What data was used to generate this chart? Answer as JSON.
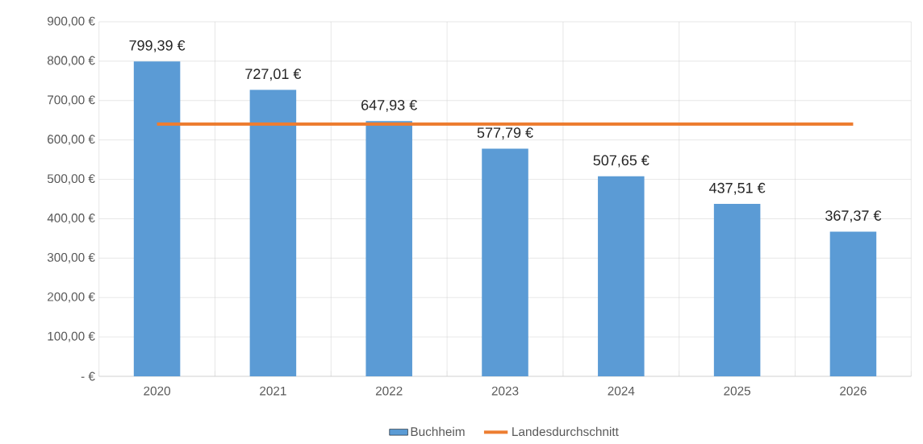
{
  "chart_data": {
    "type": "bar",
    "categories": [
      "2020",
      "2021",
      "2022",
      "2023",
      "2024",
      "2025",
      "2026"
    ],
    "series": [
      {
        "name": "Buchheim",
        "color": "#5b9bd5",
        "values": [
          799.39,
          727.01,
          647.93,
          577.79,
          507.65,
          437.51,
          367.37
        ],
        "value_labels": [
          "799,39 €",
          "727,01 €",
          "647,93 €",
          "577,79 €",
          "507,65 €",
          "437,51 €",
          "367,37 €"
        ]
      },
      {
        "name": "Landesdurchschnitt",
        "type": "line",
        "color": "#ed7d31",
        "values": [
          640,
          640,
          640,
          640,
          640,
          640,
          640
        ]
      }
    ],
    "ylim": [
      0,
      900
    ],
    "yticks": [
      {
        "value": 0,
        "label": "-   €"
      },
      {
        "value": 100,
        "label": "100,00 €"
      },
      {
        "value": 200,
        "label": "200,00 €"
      },
      {
        "value": 300,
        "label": "300,00 €"
      },
      {
        "value": 400,
        "label": "400,00 €"
      },
      {
        "value": 500,
        "label": "500,00 €"
      },
      {
        "value": 600,
        "label": "600,00 €"
      },
      {
        "value": 700,
        "label": "700,00 €"
      },
      {
        "value": 800,
        "label": "800,00 €"
      },
      {
        "value": 900,
        "label": "900,00 €"
      }
    ],
    "grid": true,
    "legend": "bottom"
  }
}
